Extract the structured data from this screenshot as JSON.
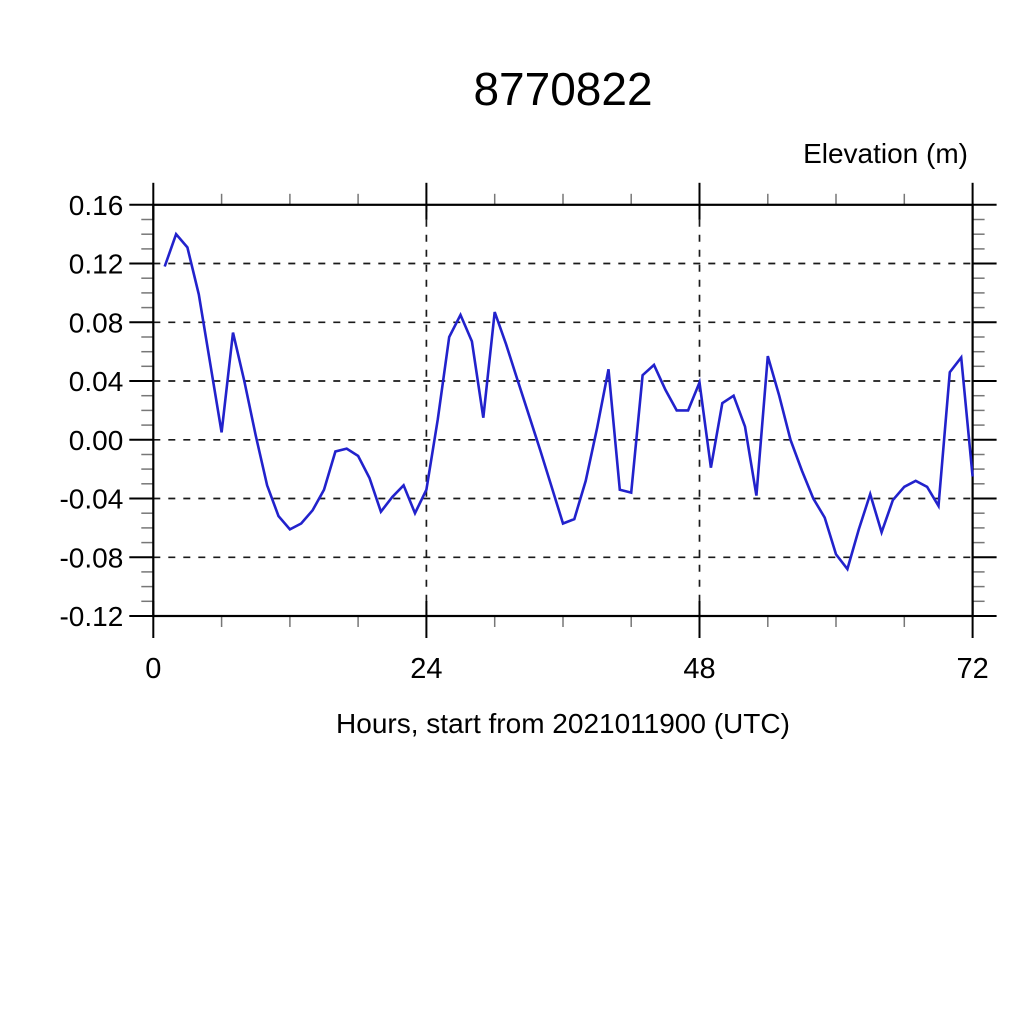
{
  "figure": {
    "title": "8770822",
    "right_axis_label": "Elevation (m)",
    "x_axis_label": "Hours, start from 2021011900 (UTC)"
  },
  "axis_tick_labels": {
    "x": [
      "0",
      "24",
      "48",
      "72"
    ],
    "y": [
      "0.16",
      "0.12",
      "0.08",
      "0.04",
      "0.00",
      "-0.04",
      "-0.08",
      "-0.12"
    ]
  },
  "chart_data": {
    "type": "line",
    "title": "8770822",
    "xlabel": "Hours, start from 2021011900 (UTC)",
    "ylabel": "Elevation (m)",
    "xlim": [
      0,
      72
    ],
    "ylim": [
      -0.12,
      0.16
    ],
    "x_major_ticks": [
      0,
      24,
      48,
      72
    ],
    "x_minor_tick_step": 6,
    "y_major_ticks": [
      0.16,
      0.12,
      0.08,
      0.04,
      0.0,
      -0.04,
      -0.08,
      -0.12
    ],
    "y_minor_tick_step": 0.01,
    "x_gridlines": [
      24,
      48
    ],
    "y_gridlines": [
      0.12,
      0.08,
      0.04,
      0.0,
      -0.04,
      -0.08
    ],
    "grid_style": "dashed",
    "legend": "none",
    "line_color": "#2222cc",
    "series_name": "Elevation (m)",
    "x": [
      1,
      2,
      3,
      4,
      5,
      6,
      7,
      8,
      9,
      10,
      11,
      12,
      13,
      14,
      15,
      16,
      17,
      18,
      19,
      20,
      21,
      22,
      23,
      24,
      25,
      26,
      27,
      28,
      29,
      30,
      31,
      32,
      33,
      34,
      35,
      36,
      37,
      38,
      39,
      40,
      41,
      42,
      43,
      44,
      45,
      46,
      47,
      48,
      49,
      50,
      51,
      52,
      53,
      54,
      55,
      56,
      57,
      58,
      59,
      60,
      61,
      62,
      63,
      64,
      65,
      66,
      67,
      68,
      69,
      70,
      71,
      72
    ],
    "values": [
      0.118,
      0.14,
      0.131,
      0.099,
      0.052,
      0.005,
      0.073,
      0.04,
      0.003,
      -0.031,
      -0.052,
      -0.061,
      -0.057,
      -0.048,
      -0.034,
      -0.008,
      -0.006,
      -0.011,
      -0.026,
      -0.049,
      -0.039,
      -0.031,
      -0.05,
      -0.034,
      0.014,
      0.07,
      0.085,
      0.067,
      0.015,
      0.087,
      0.065,
      0.041,
      0.017,
      -0.007,
      -0.032,
      -0.057,
      -0.054,
      -0.028,
      0.008,
      0.048,
      -0.034,
      -0.036,
      0.044,
      0.051,
      0.034,
      0.02,
      0.02,
      0.039,
      -0.019,
      0.025,
      0.03,
      0.009,
      -0.038,
      0.057,
      0.03,
      0.0,
      -0.021,
      -0.04,
      -0.053,
      -0.078,
      -0.088,
      -0.061,
      -0.037,
      -0.063,
      -0.041,
      -0.032,
      -0.028,
      -0.032,
      -0.045,
      0.046,
      0.056,
      -0.025
    ]
  }
}
